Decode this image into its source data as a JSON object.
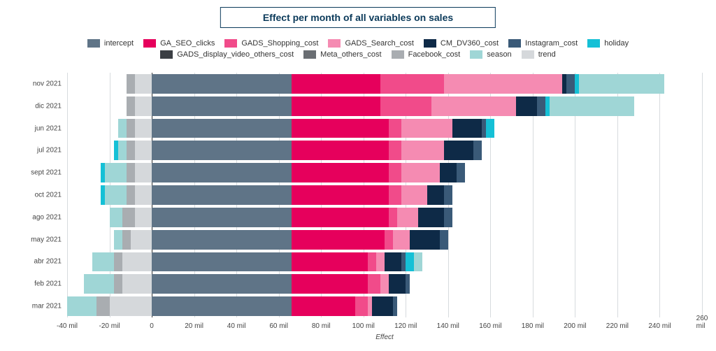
{
  "title": "Effect per month of all variables on sales",
  "title_color": "#0b3a5a",
  "title_fontsize": 14,
  "background_color": "#ffffff",
  "grid_color": "#d7dbde",
  "axis_font_color": "#444444",
  "xlabel": "Effect",
  "xlabel_fontstyle": "italic",
  "xlim": [
    -40,
    260
  ],
  "xtick_step": 20,
  "xtick_suffix": " mil",
  "xticks": [
    -40,
    -20,
    0,
    20,
    40,
    60,
    80,
    100,
    120,
    140,
    160,
    180,
    200,
    220,
    240,
    260
  ],
  "series": [
    {
      "key": "intercept",
      "label": "intercept",
      "color": "#5f7487"
    },
    {
      "key": "GA_SEO_clicks",
      "label": "GA_SEO_clicks",
      "color": "#e6005c"
    },
    {
      "key": "GADS_Shopping_cost",
      "label": "GADS_Shopping_cost",
      "color": "#f14b8a"
    },
    {
      "key": "GADS_Search_cost",
      "label": "GADS_Search_cost",
      "color": "#f58bb2"
    },
    {
      "key": "CM_DV360_cost",
      "label": "CM_DV360_cost",
      "color": "#0e2a47"
    },
    {
      "key": "Instagram_cost",
      "label": "Instagram_cost",
      "color": "#3a5a78"
    },
    {
      "key": "holiday",
      "label": "holiday",
      "color": "#15c0d6"
    },
    {
      "key": "GADS_display_video_others_cost",
      "label": "GADS_display_video_others_cost",
      "color": "#3b3f44"
    },
    {
      "key": "Meta_others_cost",
      "label": "Meta_others_cost",
      "color": "#6a6e73"
    },
    {
      "key": "Facebook_cost",
      "label": "Facebook_cost",
      "color": "#a9adb1"
    },
    {
      "key": "season",
      "label": "season",
      "color": "#9fd6d6"
    },
    {
      "key": "trend",
      "label": "trend",
      "color": "#d5d8db"
    }
  ],
  "rows": [
    {
      "label": "nov 2021",
      "neg": {
        "trend": -8,
        "Facebook_cost": -4
      },
      "pos": {
        "intercept": 66,
        "GA_SEO_clicks": 42,
        "GADS_Shopping_cost": 30,
        "GADS_Search_cost": 56,
        "CM_DV360_cost": 2,
        "Instagram_cost": 4,
        "holiday": 2,
        "season": 40
      }
    },
    {
      "label": "dic 2021",
      "neg": {
        "trend": -8,
        "Facebook_cost": -4
      },
      "pos": {
        "intercept": 66,
        "GA_SEO_clicks": 42,
        "GADS_Shopping_cost": 24,
        "GADS_Search_cost": 40,
        "CM_DV360_cost": 10,
        "Instagram_cost": 4,
        "holiday": 2,
        "season": 40
      }
    },
    {
      "label": "jun 2021",
      "neg": {
        "trend": -8,
        "Facebook_cost": -4,
        "season": -4
      },
      "pos": {
        "intercept": 66,
        "GA_SEO_clicks": 46,
        "GADS_Shopping_cost": 6,
        "GADS_Search_cost": 24,
        "CM_DV360_cost": 14,
        "Instagram_cost": 2,
        "holiday": 4
      }
    },
    {
      "label": "jul 2021",
      "neg": {
        "trend": -8,
        "Facebook_cost": -4,
        "season": -4,
        "holiday": -2
      },
      "pos": {
        "intercept": 66,
        "GA_SEO_clicks": 46,
        "GADS_Shopping_cost": 6,
        "GADS_Search_cost": 20,
        "CM_DV360_cost": 14,
        "Instagram_cost": 4
      }
    },
    {
      "label": "sept 2021",
      "neg": {
        "trend": -8,
        "Facebook_cost": -4,
        "season": -10,
        "holiday": -2
      },
      "pos": {
        "intercept": 66,
        "GA_SEO_clicks": 46,
        "GADS_Shopping_cost": 6,
        "GADS_Search_cost": 18,
        "CM_DV360_cost": 8,
        "Instagram_cost": 4
      }
    },
    {
      "label": "oct 2021",
      "neg": {
        "trend": -8,
        "Facebook_cost": -4,
        "season": -10,
        "holiday": -2
      },
      "pos": {
        "intercept": 66,
        "GA_SEO_clicks": 46,
        "GADS_Shopping_cost": 6,
        "GADS_Search_cost": 12,
        "CM_DV360_cost": 8,
        "Instagram_cost": 4
      }
    },
    {
      "label": "ago 2021",
      "neg": {
        "trend": -8,
        "Facebook_cost": -6,
        "season": -6
      },
      "pos": {
        "intercept": 66,
        "GA_SEO_clicks": 46,
        "GADS_Shopping_cost": 4,
        "GADS_Search_cost": 10,
        "CM_DV360_cost": 12,
        "Instagram_cost": 4
      }
    },
    {
      "label": "may 2021",
      "neg": {
        "trend": -10,
        "Facebook_cost": -4,
        "season": -4
      },
      "pos": {
        "intercept": 66,
        "GA_SEO_clicks": 44,
        "GADS_Shopping_cost": 4,
        "GADS_Search_cost": 8,
        "CM_DV360_cost": 14,
        "Instagram_cost": 4
      }
    },
    {
      "label": "abr 2021",
      "neg": {
        "trend": -14,
        "Facebook_cost": -4,
        "season": -10
      },
      "pos": {
        "intercept": 66,
        "GA_SEO_clicks": 36,
        "GADS_Shopping_cost": 4,
        "GADS_Search_cost": 4,
        "CM_DV360_cost": 8,
        "Instagram_cost": 2,
        "holiday": 4,
        "season": 4
      }
    },
    {
      "label": "feb 2021",
      "neg": {
        "trend": -14,
        "Facebook_cost": -4,
        "season": -14
      },
      "pos": {
        "intercept": 66,
        "GA_SEO_clicks": 36,
        "GADS_Shopping_cost": 6,
        "GADS_Search_cost": 4,
        "CM_DV360_cost": 8,
        "Instagram_cost": 2
      }
    },
    {
      "label": "mar 2021",
      "neg": {
        "trend": -20,
        "Facebook_cost": -6,
        "season": -14
      },
      "pos": {
        "intercept": 66,
        "GA_SEO_clicks": 30,
        "GADS_Shopping_cost": 6,
        "GADS_Search_cost": 2,
        "CM_DV360_cost": 10,
        "Instagram_cost": 2
      }
    }
  ],
  "bar_row_height": 30,
  "bar_inner_pad": 2,
  "ylabel_fontsize": 10,
  "xtick_fontsize": 10,
  "legend_fontsize": 11
}
